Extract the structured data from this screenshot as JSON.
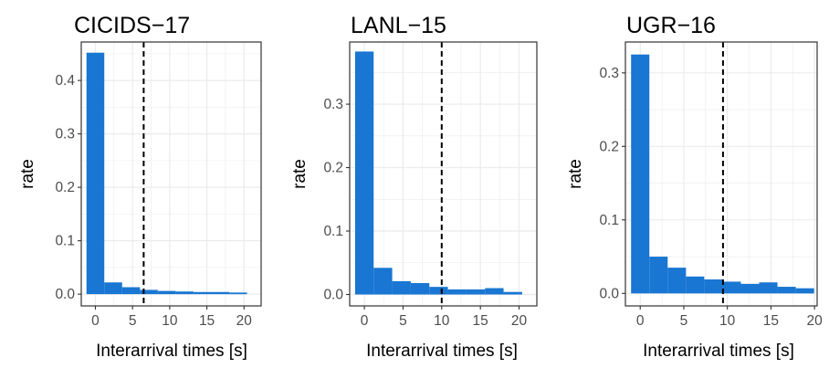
{
  "colors": {
    "bar": "#1976d2",
    "grid": "#ebebeb",
    "panel_border": "#333333",
    "threshold": "#000000"
  },
  "chart_data": [
    {
      "type": "bar",
      "title": "CICIDS−17",
      "xlabel": "Interarrival times [s]",
      "ylabel": "rate",
      "xlim": [
        -1.9,
        22.3
      ],
      "ylim": [
        -0.022,
        0.472
      ],
      "x_ticks": [
        0,
        5,
        10,
        15,
        20
      ],
      "x_tick_labels": [
        "0",
        "5",
        "10",
        "15",
        "20"
      ],
      "y_ticks": [
        0.0,
        0.1,
        0.2,
        0.3,
        0.4
      ],
      "y_tick_labels": [
        "0.0",
        "0.1",
        "0.2",
        "0.3",
        "0.4"
      ],
      "threshold": 6.5,
      "bin_width": 2.4,
      "bin_centers": [
        0,
        2.4,
        4.8,
        7.2,
        9.6,
        12.0,
        14.4,
        16.8,
        19.2
      ],
      "values": [
        0.452,
        0.022,
        0.013,
        0.008,
        0.006,
        0.005,
        0.004,
        0.004,
        0.003
      ],
      "grid": true
    },
    {
      "type": "bar",
      "title": "LANL−15",
      "xlabel": "Interarrival times [s]",
      "ylabel": "rate",
      "xlim": [
        -1.9,
        22.3
      ],
      "ylim": [
        -0.018,
        0.398
      ],
      "x_ticks": [
        0,
        5,
        10,
        15,
        20
      ],
      "x_tick_labels": [
        "0",
        "5",
        "10",
        "15",
        "20"
      ],
      "y_ticks": [
        0.0,
        0.1,
        0.2,
        0.3
      ],
      "y_tick_labels": [
        "0.0",
        "0.1",
        "0.2",
        "0.3"
      ],
      "threshold": 10,
      "bin_width": 2.4,
      "bin_centers": [
        0,
        2.4,
        4.8,
        7.2,
        9.6,
        12.0,
        14.4,
        16.8,
        19.2
      ],
      "values": [
        0.383,
        0.042,
        0.021,
        0.018,
        0.012,
        0.008,
        0.008,
        0.01,
        0.004
      ],
      "grid": true
    },
    {
      "type": "bar",
      "title": "UGR−16",
      "xlabel": "Interarrival times [s]",
      "ylabel": "rate",
      "xlim": [
        -1.7,
        20.3
      ],
      "ylim": [
        -0.017,
        0.342
      ],
      "x_ticks": [
        0,
        5,
        10,
        15,
        20
      ],
      "x_tick_labels": [
        "0",
        "5",
        "10",
        "15",
        "20"
      ],
      "y_ticks": [
        0.0,
        0.1,
        0.2,
        0.3
      ],
      "y_tick_labels": [
        "0.0",
        "0.1",
        "0.2",
        "0.3"
      ],
      "threshold": 9.5,
      "bin_width": 2.1,
      "bin_centers": [
        0,
        2.1,
        4.2,
        6.3,
        8.4,
        10.5,
        12.6,
        14.7,
        16.8,
        18.9
      ],
      "values": [
        0.325,
        0.05,
        0.035,
        0.023,
        0.019,
        0.016,
        0.013,
        0.015,
        0.009,
        0.007
      ],
      "grid": true
    }
  ]
}
